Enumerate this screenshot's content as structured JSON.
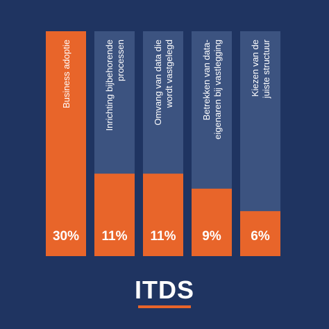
{
  "chart_data": {
    "type": "bar",
    "categories": [
      [
        "Business adoptie"
      ],
      [
        "Inrichting bijbehorende",
        "processen"
      ],
      [
        "Omvang van data die",
        "wordt vastgelegd"
      ],
      [
        "Betrekken van data-",
        "eigenaren bij vastlegging"
      ],
      [
        "Kiezen van de",
        "juiste structuur"
      ]
    ],
    "values": [
      30,
      11,
      11,
      9,
      6
    ],
    "value_labels": [
      "30%",
      "11%",
      "11%",
      "9%",
      "6%"
    ],
    "ylim": [
      0,
      30
    ],
    "title": "",
    "xlabel": "",
    "ylabel": "",
    "grid": false
  },
  "colors": {
    "background": "#1f3461",
    "bar_track": "#3c5380",
    "bar_fill": "#e8652a",
    "text": "#ffffff"
  },
  "brand": {
    "logo_text": "ITDS"
  }
}
